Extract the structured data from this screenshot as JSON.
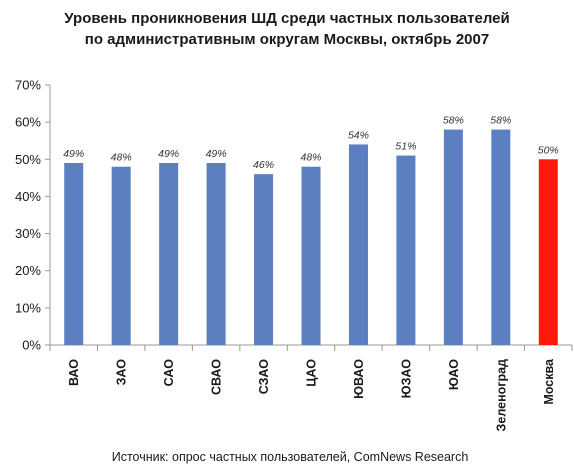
{
  "chart_data": {
    "type": "bar",
    "title_line1": "Уровень проникновения ШД среди частных пользователей",
    "title_line2": "по административным округам Москвы, октябрь 2007",
    "categories": [
      "ВАО",
      "ЗАО",
      "САО",
      "СВАО",
      "СЗАО",
      "ЦАО",
      "ЮВАО",
      "ЮЗАО",
      "ЮАО",
      "Зеленоград",
      "Москва"
    ],
    "values": [
      49,
      48,
      49,
      49,
      46,
      48,
      54,
      51,
      58,
      58,
      50
    ],
    "value_labels": [
      "49%",
      "48%",
      "49%",
      "49%",
      "46%",
      "48%",
      "54%",
      "51%",
      "58%",
      "58%",
      "50%"
    ],
    "highlight_index": 10,
    "y_ticks": [
      "0%",
      "10%",
      "20%",
      "30%",
      "40%",
      "50%",
      "60%",
      "70%"
    ],
    "ylim": [
      0,
      70
    ],
    "grid": false,
    "xlabel": "",
    "ylabel": "",
    "colors": {
      "bar": "#5b7fc1",
      "highlight": "#ff1a0a",
      "axis": "#999999"
    }
  },
  "source_text": "Источник: опрос частных пользователей, ComNews Research"
}
